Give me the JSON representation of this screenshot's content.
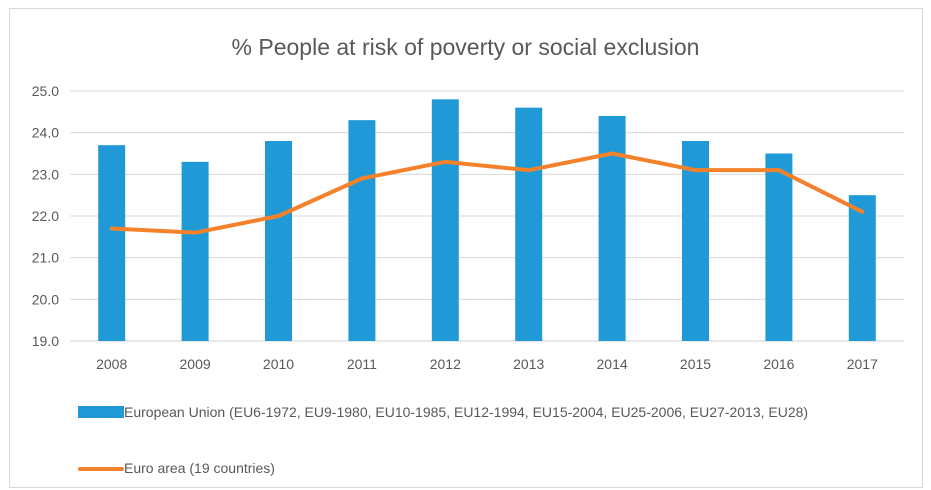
{
  "chart_data": {
    "type": "bar",
    "title": "% People at risk of poverty or social exclusion",
    "categories": [
      "2008",
      "2009",
      "2010",
      "2011",
      "2012",
      "2013",
      "2014",
      "2015",
      "2016",
      "2017"
    ],
    "ylim": [
      19.0,
      25.0
    ],
    "yticks": [
      "19.0",
      "20.0",
      "21.0",
      "22.0",
      "23.0",
      "24.0",
      "25.0"
    ],
    "grid": true,
    "legend_position": "bottom",
    "series": [
      {
        "name": "European Union (EU6-1972, EU9-1980, EU10-1985, EU12-1994, EU15-2004, EU25-2006, EU27-2013, EU28)",
        "type": "bar",
        "color": "#1f9ad6",
        "values": [
          23.7,
          23.3,
          23.8,
          24.3,
          24.8,
          24.6,
          24.4,
          23.8,
          23.5,
          22.5
        ]
      },
      {
        "name": "Euro area (19 countries)",
        "type": "line",
        "color": "#f5822a",
        "values": [
          21.7,
          21.6,
          22.0,
          22.9,
          23.3,
          23.1,
          23.5,
          23.1,
          23.1,
          22.1
        ]
      }
    ]
  }
}
